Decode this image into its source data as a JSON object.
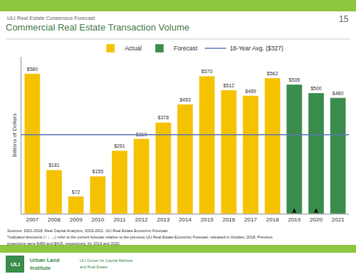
{
  "chart_data": {
    "type": "bar",
    "title": "Commercial Real Estate Transaction Volume",
    "subtitle": "ULI Real Estate Consensus Forecast",
    "page_number": "15",
    "ylabel": "Billions of Dollars",
    "categories": [
      "2007",
      "2008",
      "2009",
      "2010",
      "2011",
      "2012",
      "2013",
      "2014",
      "2015",
      "2016",
      "2017",
      "2018",
      "2019",
      "2020",
      "2021"
    ],
    "series": [
      {
        "name": "Actual",
        "color": "#F5C200",
        "values": [
          580,
          181,
          72,
          155,
          261,
          310,
          378,
          453,
          570,
          512,
          489,
          562,
          null,
          null,
          null
        ],
        "value_labels": [
          "$580",
          "$181",
          "$72",
          "$155",
          "$261",
          "$310",
          "$378",
          "$453",
          "$570",
          "$512",
          "$489",
          "$562",
          null,
          null,
          null
        ]
      },
      {
        "name": "Forecast",
        "color": "#3A8C4C",
        "values": [
          null,
          null,
          null,
          null,
          null,
          null,
          null,
          null,
          null,
          null,
          null,
          null,
          535,
          500,
          480
        ],
        "value_labels": [
          null,
          null,
          null,
          null,
          null,
          null,
          null,
          null,
          null,
          null,
          null,
          null,
          "$535",
          "$500",
          "$480"
        ]
      }
    ],
    "reference_line": {
      "name": "18-Year Avg. ($327)",
      "value": 327,
      "color": "#5B77B5"
    },
    "arrows": [
      {
        "category": "2019",
        "from": 4,
        "to": 22
      },
      {
        "category": "2020",
        "from": 4,
        "to": 22
      }
    ],
    "data_labels": true,
    "ylim": [
      0,
      650
    ],
    "tick_labels": "x",
    "grid": false,
    "legend": "top",
    "notes": [
      "Sources: 2001-2018, Real Capital Analytics; 2019-2021, ULI Real Estate Economic Forecast.",
      "*Indicated directions (↑ ↓ →) refer to the current forecast relative to the previous ULI Real Estate Economic Forecast, released in October, 2018. Previous",
      "projections were $450 and $415, respectively, for 2019 and 2020."
    ],
    "footer": {
      "logo": "ULI",
      "organization": [
        "Urban Land",
        "Institute"
      ],
      "center": [
        "ULI Center for Capital Markets",
        "and Real Estate"
      ]
    }
  }
}
